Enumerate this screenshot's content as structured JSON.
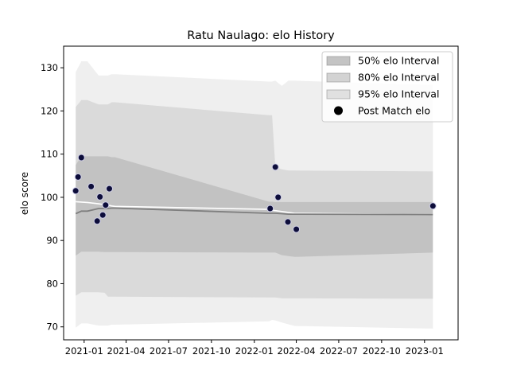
{
  "chart_data": {
    "type": "line",
    "title": "Ratu Naulago: elo History",
    "xlabel": "",
    "ylabel": "elo score",
    "ylim": [
      67,
      135
    ],
    "xlim": [
      "2020-11-18",
      "2023-03-14"
    ],
    "grid": false,
    "legend_position": "top-right",
    "yticks": [
      70,
      80,
      90,
      100,
      110,
      120,
      130
    ],
    "xticks": [
      {
        "date": "2021-01-01",
        "label": "2021-01"
      },
      {
        "date": "2021-04-01",
        "label": "2021-04"
      },
      {
        "date": "2021-07-01",
        "label": "2021-07"
      },
      {
        "date": "2021-10-01",
        "label": "2021-10"
      },
      {
        "date": "2022-01-01",
        "label": "2022-01"
      },
      {
        "date": "2022-04-01",
        "label": "2022-04"
      },
      {
        "date": "2022-07-01",
        "label": "2022-07"
      },
      {
        "date": "2022-10-01",
        "label": "2022-10"
      },
      {
        "date": "2023-01-01",
        "label": "2023-01"
      }
    ],
    "legend": [
      {
        "label": "50% elo Interval",
        "kind": "band",
        "color": "#7f7f7f",
        "alpha": 0.6
      },
      {
        "label": "80% elo Interval",
        "kind": "band",
        "color": "#7f7f7f",
        "alpha": 0.4
      },
      {
        "label": "95% elo Interval",
        "kind": "band",
        "color": "#7f7f7f",
        "alpha": 0.2
      },
      {
        "label": "Post Match elo",
        "kind": "marker",
        "color": "#000000"
      }
    ],
    "bands": {
      "dates": [
        "2020-12-14",
        "2020-12-26",
        "2021-01-08",
        "2021-02-01",
        "2021-02-14",
        "2021-02-21",
        "2021-03-01",
        "2021-03-08",
        "2022-02-01",
        "2022-02-08",
        "2022-02-15",
        "2022-03-01",
        "2022-03-15",
        "2022-03-29",
        "2023-01-19"
      ],
      "mean": [
        96.2,
        96.8,
        96.8,
        97.4,
        97.4,
        97.4,
        97.5,
        97.5,
        96.3,
        96.3,
        96.3,
        96.2,
        96.1,
        96.1,
        96.0
      ],
      "p50_low": [
        86.5,
        87.4,
        87.4,
        87.4,
        87.3,
        87.3,
        87.3,
        87.3,
        87.2,
        87.2,
        87.2,
        86.6,
        86.4,
        86.2,
        87.2
      ],
      "p50_high": [
        107.5,
        109.5,
        109.5,
        109.5,
        109.5,
        109.5,
        109.3,
        109.3,
        99.0,
        99.0,
        98.9,
        98.9,
        98.9,
        98.9,
        98.9
      ],
      "p80_low": [
        77.2,
        78.0,
        78.0,
        78.0,
        77.9,
        77.0,
        77.0,
        77.0,
        76.8,
        76.8,
        76.8,
        76.6,
        76.6,
        76.6,
        76.5
      ],
      "p80_high": [
        120.9,
        122.5,
        122.5,
        121.5,
        121.5,
        121.5,
        122.0,
        122.0,
        119.0,
        119.0,
        107.0,
        106.5,
        106.2,
        106.2,
        106.0
      ],
      "p95_low": [
        69.8,
        70.8,
        70.8,
        70.3,
        70.3,
        70.3,
        70.5,
        70.5,
        71.3,
        71.6,
        71.5,
        71.0,
        70.6,
        70.2,
        69.6
      ],
      "p95_high": [
        129.0,
        131.5,
        131.5,
        128.2,
        128.2,
        128.2,
        128.5,
        128.5,
        126.8,
        126.8,
        127.0,
        125.8,
        127.0,
        127.0,
        126.0
      ],
      "white_line": [
        99.0,
        98.9,
        98.8,
        98.5,
        98.3,
        98.2,
        98.0,
        97.9,
        97.2,
        97.0,
        96.9,
        96.7,
        96.5,
        96.3,
        96.0
      ]
    },
    "series": [
      {
        "name": "Post Match elo",
        "points": [
          {
            "date": "2020-12-14",
            "value": 101.5
          },
          {
            "date": "2020-12-19",
            "value": 104.7
          },
          {
            "date": "2020-12-26",
            "value": 109.2
          },
          {
            "date": "2021-01-16",
            "value": 102.5
          },
          {
            "date": "2021-01-29",
            "value": 94.5
          },
          {
            "date": "2021-02-04",
            "value": 100.1
          },
          {
            "date": "2021-02-10",
            "value": 95.9
          },
          {
            "date": "2021-02-16",
            "value": 98.2
          },
          {
            "date": "2021-02-24",
            "value": 102.0
          },
          {
            "date": "2022-02-04",
            "value": 97.4
          },
          {
            "date": "2022-02-15",
            "value": 107.0
          },
          {
            "date": "2022-02-21",
            "value": 100.0
          },
          {
            "date": "2022-03-14",
            "value": 94.3
          },
          {
            "date": "2022-04-01",
            "value": 92.6
          },
          {
            "date": "2023-01-19",
            "value": 98.0
          }
        ]
      }
    ]
  }
}
